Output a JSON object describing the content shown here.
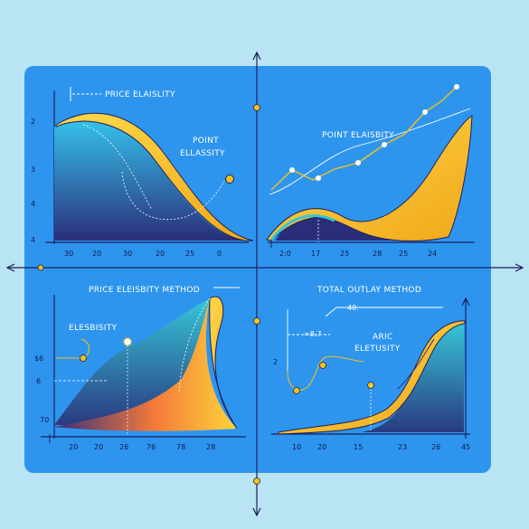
{
  "colors": {
    "background": "#b9e4f3",
    "panel": "#2e95ef",
    "curve_yellow": "#f5c21c",
    "curve_blue": "#2fb7e6",
    "curve_navy": "#2a2e7a",
    "axis": "#1b1f5c"
  },
  "panels": {
    "top_left": {
      "title": "PRICE ELAISLITY",
      "callout": [
        "POINT",
        "ELLASSITY"
      ],
      "y_ticks": [
        "2",
        "3",
        "4",
        "4"
      ],
      "x_ticks": [
        "30",
        "20",
        "30",
        "20",
        "25",
        "0"
      ]
    },
    "top_right": {
      "title": "POINT ELAISBITY",
      "x_ticks": [
        "2:0",
        "17",
        "25",
        "28",
        "25",
        "24"
      ]
    },
    "bottom_left": {
      "title": "PRICE ELEISBITY METHOD",
      "callout": "ELESBISITY",
      "y_ticks": [
        "$6",
        "6",
        "70"
      ],
      "x_ticks": [
        "20",
        "20",
        "26",
        "76",
        "78",
        "28"
      ]
    },
    "bottom_right": {
      "title": "TOTAL OUTLAY METHOD",
      "callout_top": "40.",
      "callout_mid": "=8.7",
      "callout": [
        "ARIC",
        "ELETUSITY"
      ],
      "y_ticks": [
        "2"
      ],
      "x_ticks": [
        "10",
        "20",
        "15",
        "23",
        "26",
        "45"
      ]
    }
  }
}
